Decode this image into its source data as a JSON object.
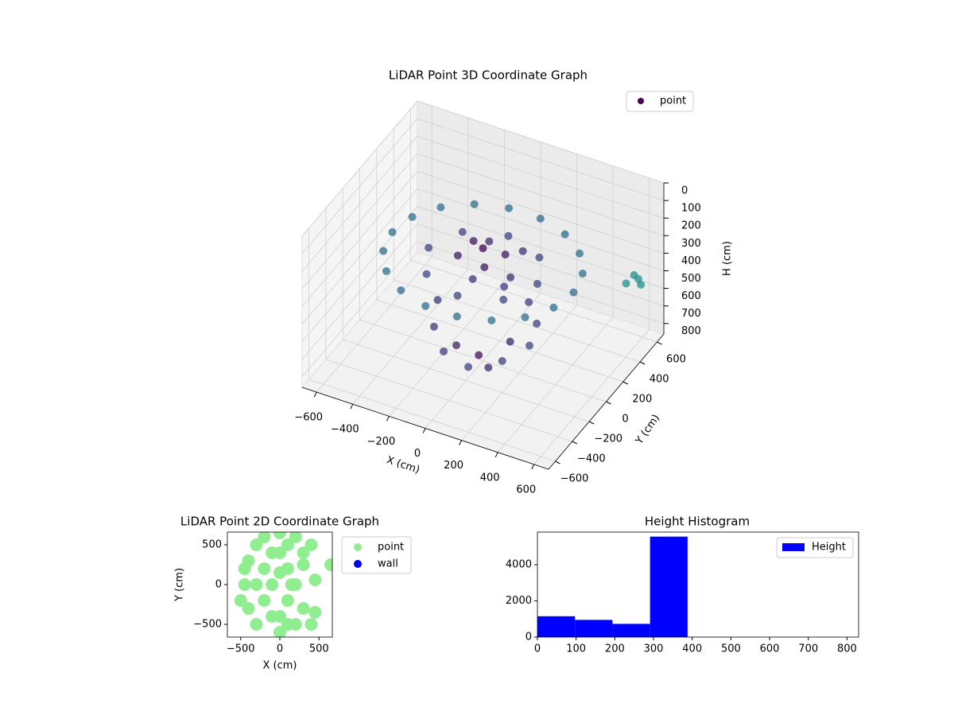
{
  "chart_data": [
    {
      "type": "scatter3d",
      "title": "LiDAR Point 3D Coordinate Graph",
      "xlabel": "X (cm)",
      "ylabel": "Y (cm)",
      "zlabel": "H (cm)",
      "series": [
        {
          "name": "point",
          "color": "#440154",
          "x": [
            500,
            470,
            383,
            250,
            87,
            -87,
            -250,
            -383,
            -470,
            -500,
            -470,
            -383,
            -250,
            -87,
            87,
            250,
            383,
            470,
            300,
            212,
            0,
            -212,
            -300,
            -212,
            0,
            212,
            0,
            100,
            -80,
            50,
            -120,
            150,
            -50,
            180,
            -250,
            -200,
            -100,
            50,
            200,
            280,
            250,
            150,
            0,
            -150,
            -100,
            100,
            0,
            150,
            600,
            600,
            600,
            500
          ],
          "y": [
            0,
            171,
            321,
            433,
            492,
            492,
            433,
            321,
            171,
            0,
            -171,
            -321,
            -433,
            -492,
            -492,
            -433,
            -321,
            -171,
            0,
            212,
            300,
            212,
            0,
            -212,
            -300,
            -212,
            0,
            50,
            60,
            -90,
            -40,
            150,
            180,
            -60,
            0,
            -150,
            -250,
            -280,
            -200,
            -50,
            100,
            220,
            250,
            200,
            -100,
            -150,
            -50,
            0,
            500,
            550,
            580,
            620
          ],
          "z": [
            300,
            300,
            300,
            300,
            300,
            300,
            300,
            300,
            300,
            300,
            300,
            300,
            300,
            300,
            300,
            300,
            300,
            300,
            320,
            320,
            320,
            320,
            320,
            320,
            320,
            320,
            220,
            250,
            240,
            260,
            280,
            270,
            300,
            290,
            600,
            650,
            700,
            720,
            680,
            650,
            620,
            600,
            580,
            560,
            750,
            780,
            800,
            700,
            450,
            500,
            550,
            600
          ]
        }
      ],
      "xlim": [
        -680,
        680
      ],
      "ylim": [
        -680,
        680
      ],
      "zlim": [
        860,
        0
      ],
      "xticks": [
        {
          "value": -600,
          "label": "−600"
        },
        {
          "value": -400,
          "label": "−400"
        },
        {
          "value": -200,
          "label": "−200"
        },
        0,
        200,
        400,
        600
      ],
      "yticks": [
        {
          "value": -600,
          "label": "−600"
        },
        {
          "value": -400,
          "label": "−400"
        },
        {
          "value": -200,
          "label": "−200"
        },
        0,
        200,
        400,
        600
      ],
      "zticks": [
        0,
        100,
        200,
        300,
        400,
        500,
        600,
        700,
        800
      ],
      "grid": true,
      "legend": "upper right"
    },
    {
      "type": "scatter",
      "title": "LiDAR Point 2D Coordinate Graph",
      "xlabel": "X (cm)",
      "ylabel": "Y (cm)",
      "series": [
        {
          "name": "point",
          "color": "#90ee90",
          "x": [
            -450,
            -400,
            -400,
            -300,
            -300,
            -200,
            -200,
            -200,
            -100,
            0,
            0,
            0,
            0,
            100,
            100,
            200,
            200,
            300,
            300,
            400,
            400,
            450,
            -500,
            -450,
            -100,
            -100,
            100,
            100,
            200,
            300,
            450,
            650,
            150,
            -300,
            0
          ],
          "y": [
            0,
            300,
            -300,
            500,
            -500,
            600,
            200,
            -200,
            0,
            650,
            400,
            -400,
            -600,
            200,
            -200,
            600,
            -500,
            400,
            -300,
            500,
            -500,
            -350,
            -200,
            200,
            400,
            -400,
            500,
            -500,
            0,
            250,
            60,
            250,
            0,
            0,
            150
          ]
        },
        {
          "name": "wall",
          "color": "#0000ff",
          "x": [],
          "y": []
        }
      ],
      "xlim": [
        -670,
        670
      ],
      "ylim": [
        -660,
        660
      ],
      "xticks": [
        {
          "value": -500,
          "label": "−500"
        },
        0,
        500
      ],
      "yticks": [
        {
          "value": -500,
          "label": "−500"
        },
        0,
        500
      ],
      "legend": "outside right"
    },
    {
      "type": "histogram",
      "title": "Height Histogram",
      "bins": [
        0,
        97,
        194,
        291,
        388,
        485,
        582,
        679,
        776
      ],
      "series": [
        {
          "name": "Height",
          "color": "#0000ff",
          "values": [
            1150,
            950,
            730,
            5550,
            10,
            5,
            5,
            5
          ]
        }
      ],
      "xlim": [
        0,
        830
      ],
      "ylim": [
        0,
        5800
      ],
      "xticks": [
        0,
        100,
        200,
        300,
        400,
        500,
        600,
        700,
        800
      ],
      "yticks": [
        0,
        2000,
        4000
      ],
      "legend": "upper right"
    }
  ]
}
